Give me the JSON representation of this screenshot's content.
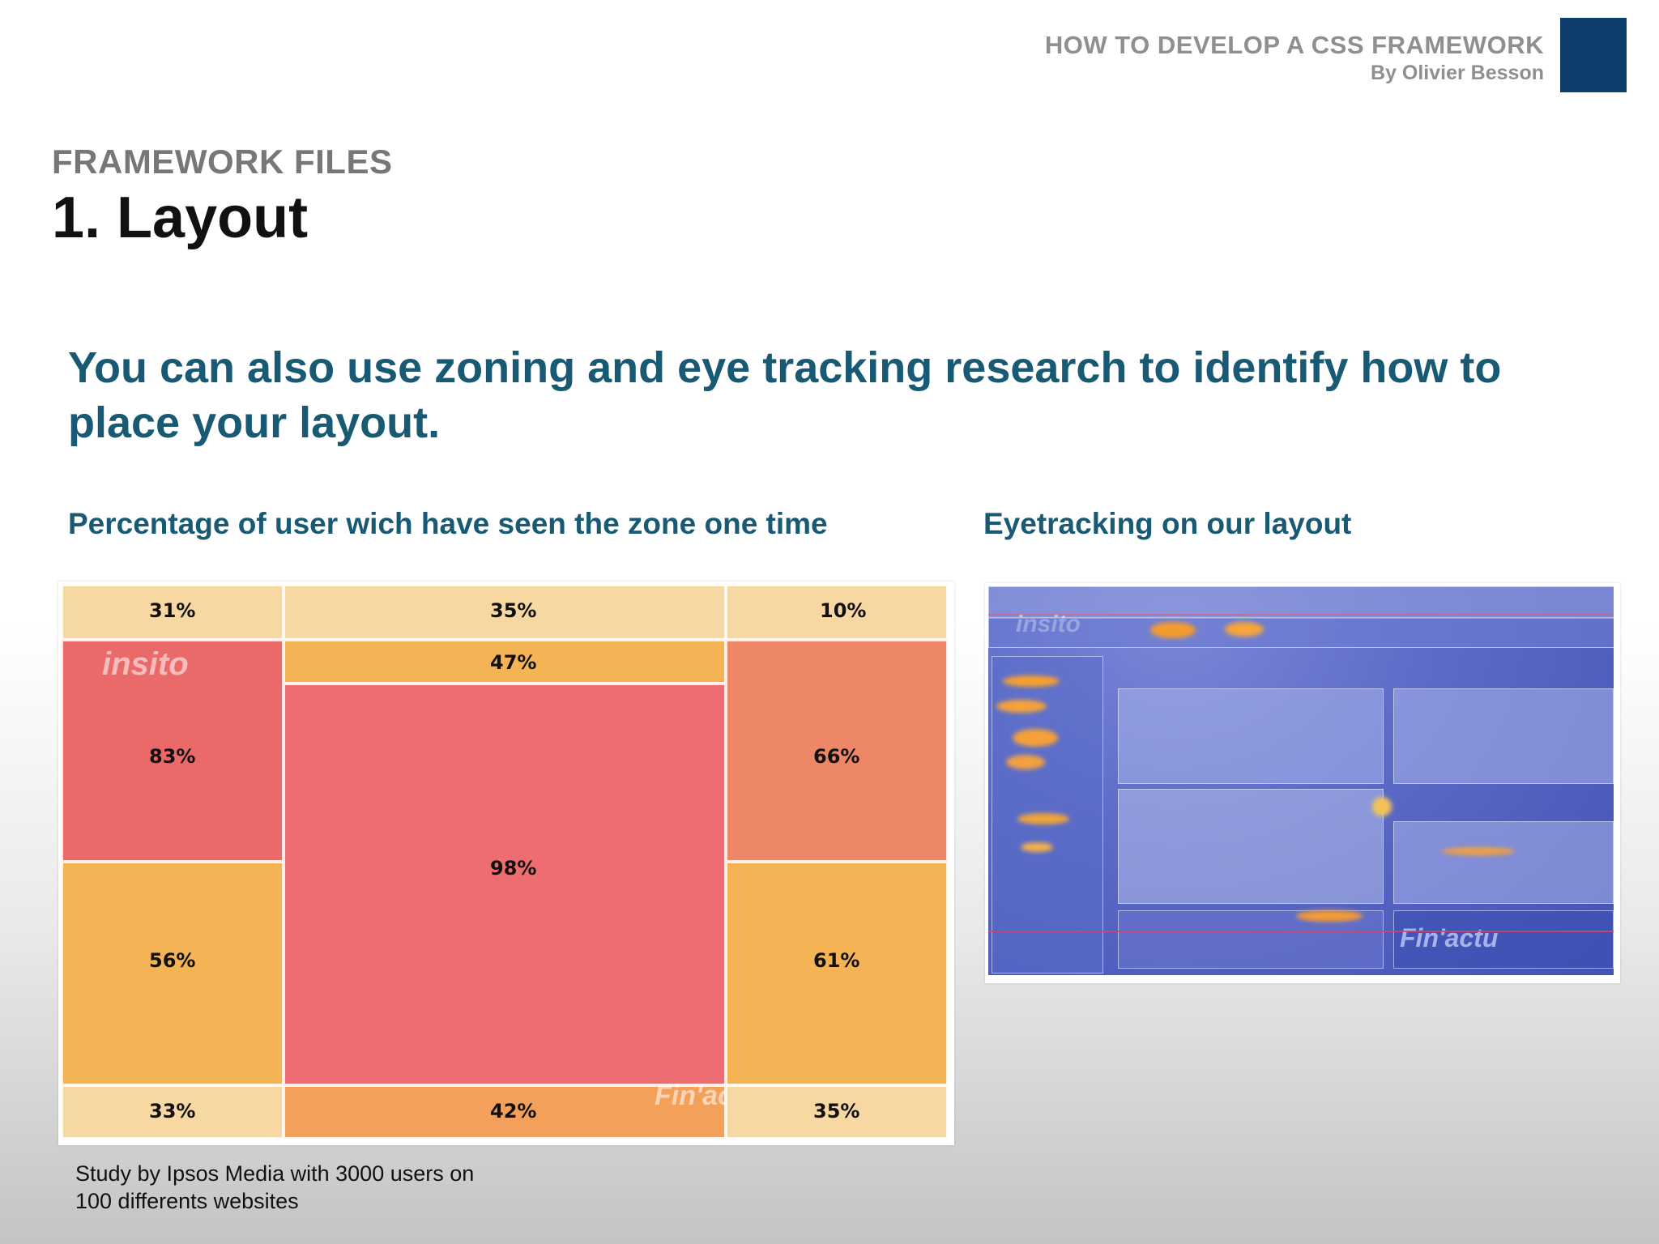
{
  "header": {
    "deck_title": "HOW TO DEVELOP A CSS FRAMEWORK",
    "author": "By Olivier Besson",
    "accent_color": "#0d3d6b"
  },
  "slide": {
    "section": "FRAMEWORK FILES",
    "title": "1. Layout",
    "lead": "You can also use zoning and eye tracking research to identify how to place your layout.",
    "left_caption": "Percentage of user wich have seen the zone one time",
    "right_caption": "Eyetracking on our layout",
    "study_note_line1": "Study by Ipsos Media with 3000 users on",
    "study_note_line2": "100 differents websites"
  },
  "zoning": {
    "brand_text": "insito",
    "footer_text": "Fin'actu",
    "zones": {
      "top_left": "31%",
      "top_center": "35%",
      "top_right": "10%",
      "nav_center": "47%",
      "mid_left": "83%",
      "center": "98%",
      "mid_right": "66%",
      "lower_left": "56%",
      "lower_right": "61%",
      "bottom_left": "33%",
      "bottom_center": "42%",
      "bottom_right": "35%"
    }
  },
  "eyetracking": {
    "brand_text": "insito",
    "footer_text": "Fin'actu"
  }
}
